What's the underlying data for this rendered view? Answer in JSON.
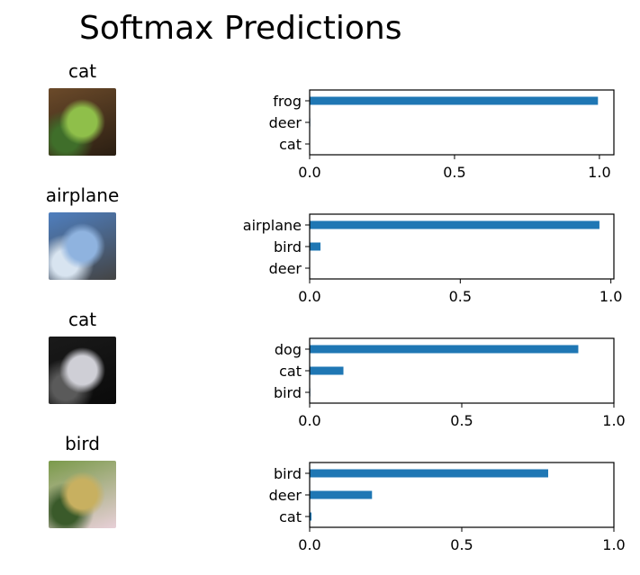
{
  "page": {
    "title": "Softmax Predictions"
  },
  "colors": {
    "bar": "#1f77b4",
    "axis": "#000000"
  },
  "rows": [
    {
      "true_label": "cat",
      "thumbnail": {
        "icon": "frog-photo-icon",
        "colors": [
          "#6b4a2a",
          "#8fbf4a",
          "#3f6e2a",
          "#2a1e12"
        ]
      },
      "chart_data": {
        "type": "bar",
        "orientation": "horizontal",
        "categories": [
          "frog",
          "deer",
          "cat"
        ],
        "values": [
          0.995,
          0.002,
          0.001
        ],
        "xlim": [
          0,
          1.05
        ],
        "xticks": [
          "0.0",
          "0.5",
          "1.0"
        ],
        "title": "",
        "xlabel": "",
        "ylabel": ""
      }
    },
    {
      "true_label": "airplane",
      "thumbnail": {
        "icon": "airplane-photo-icon",
        "colors": [
          "#4f7fbf",
          "#8fb3df",
          "#d8e4f0",
          "#444444"
        ]
      },
      "chart_data": {
        "type": "bar",
        "orientation": "horizontal",
        "categories": [
          "airplane",
          "bird",
          "deer"
        ],
        "values": [
          0.962,
          0.036,
          0.001
        ],
        "xlim": [
          0,
          1.01
        ],
        "xticks": [
          "0.0",
          "0.5",
          "1.0"
        ],
        "title": "",
        "xlabel": "",
        "ylabel": ""
      }
    },
    {
      "true_label": "cat",
      "thumbnail": {
        "icon": "cat-photo-icon",
        "colors": [
          "#1a1a1a",
          "#cfcfd6",
          "#5a5a5a",
          "#0a0a0a"
        ]
      },
      "chart_data": {
        "type": "bar",
        "orientation": "horizontal",
        "categories": [
          "dog",
          "cat",
          "bird"
        ],
        "values": [
          0.883,
          0.111,
          0.002
        ],
        "xlim": [
          0,
          1.0
        ],
        "xticks": [
          "0.0",
          "0.5",
          "1.0"
        ],
        "title": "",
        "xlabel": "",
        "ylabel": ""
      }
    },
    {
      "true_label": "bird",
      "thumbnail": {
        "icon": "bird-photo-icon",
        "colors": [
          "#7a9a4a",
          "#c8b060",
          "#3a5a2a",
          "#e8d0d8"
        ]
      },
      "chart_data": {
        "type": "bar",
        "orientation": "horizontal",
        "categories": [
          "bird",
          "deer",
          "cat"
        ],
        "values": [
          0.784,
          0.205,
          0.006
        ],
        "xlim": [
          0,
          1.0
        ],
        "xticks": [
          "0.0",
          "0.5",
          "1.0"
        ],
        "title": "",
        "xlabel": "",
        "ylabel": ""
      }
    }
  ]
}
